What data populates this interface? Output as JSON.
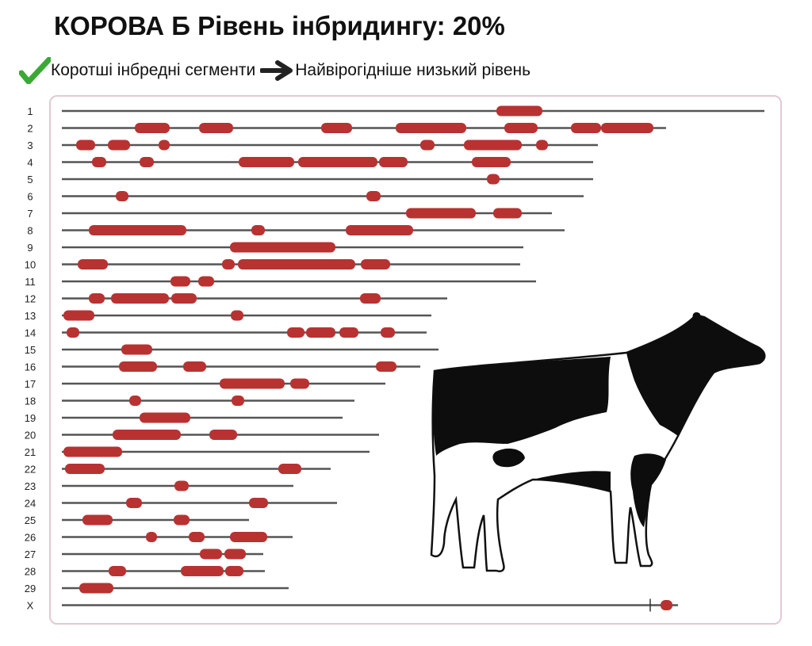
{
  "header": {
    "title": "КОРОВА Б Рівень інбридингу: 20%",
    "note_left": "Коротші інбредні сегменти",
    "note_right": "Найвірогідніше низький рівень"
  },
  "colors": {
    "segment": "#b83232",
    "chromosome": "#555555",
    "check": "#3aa935",
    "panel_border": "#e2c9d6"
  },
  "icons": [
    "check-icon",
    "arrow-right-icon",
    "cow-illustration"
  ],
  "chart_data": {
    "type": "chromosome-map",
    "chromosomes": [
      {
        "label": "1",
        "length": 886,
        "segments": [
          [
            548,
            606
          ]
        ]
      },
      {
        "label": "2",
        "length": 762,
        "segments": [
          [
            92,
            136
          ],
          [
            173,
            216
          ],
          [
            327,
            366
          ],
          [
            421,
            510
          ],
          [
            558,
            600
          ],
          [
            642,
            680
          ],
          [
            680,
            746
          ]
        ]
      },
      {
        "label": "3",
        "length": 676,
        "segments": [
          [
            18,
            42
          ],
          [
            58,
            86
          ],
          [
            122,
            136
          ],
          [
            452,
            470
          ],
          [
            507,
            580
          ],
          [
            598,
            613
          ]
        ]
      },
      {
        "label": "4",
        "length": 670,
        "segments": [
          [
            38,
            56
          ],
          [
            98,
            116
          ],
          [
            223,
            293
          ],
          [
            298,
            398
          ],
          [
            400,
            436
          ],
          [
            517,
            566
          ]
        ]
      },
      {
        "label": "5",
        "length": 670,
        "segments": [
          [
            536,
            552
          ]
        ]
      },
      {
        "label": "6",
        "length": 658,
        "segments": [
          [
            68,
            84
          ],
          [
            384,
            402
          ]
        ]
      },
      {
        "label": "7",
        "length": 618,
        "segments": [
          [
            434,
            522
          ],
          [
            544,
            580
          ]
        ]
      },
      {
        "label": "8",
        "length": 634,
        "segments": [
          [
            34,
            157
          ],
          [
            239,
            256
          ],
          [
            358,
            443
          ]
        ]
      },
      {
        "label": "9",
        "length": 582,
        "segments": [
          [
            212,
            345
          ]
        ]
      },
      {
        "label": "10",
        "length": 578,
        "segments": [
          [
            20,
            58
          ],
          [
            202,
            218
          ],
          [
            222,
            370
          ],
          [
            377,
            414
          ]
        ]
      },
      {
        "label": "11",
        "length": 598,
        "segments": [
          [
            137,
            162
          ],
          [
            172,
            192
          ]
        ]
      },
      {
        "label": "12",
        "length": 486,
        "segments": [
          [
            34,
            54
          ],
          [
            62,
            135
          ],
          [
            138,
            170
          ],
          [
            376,
            402
          ]
        ]
      },
      {
        "label": "13",
        "length": 466,
        "segments": [
          [
            2,
            41
          ],
          [
            213,
            229
          ]
        ]
      },
      {
        "label": "14",
        "length": 460,
        "segments": [
          [
            6,
            22
          ],
          [
            284,
            306
          ],
          [
            308,
            345
          ],
          [
            350,
            374
          ],
          [
            402,
            420
          ]
        ]
      },
      {
        "label": "15",
        "length": 475,
        "segments": [
          [
            75,
            114
          ]
        ]
      },
      {
        "label": "16",
        "length": 452,
        "segments": [
          [
            72,
            120
          ],
          [
            153,
            182
          ],
          [
            396,
            422
          ]
        ]
      },
      {
        "label": "17",
        "length": 408,
        "segments": [
          [
            199,
            281
          ],
          [
            288,
            312
          ]
        ]
      },
      {
        "label": "18",
        "length": 369,
        "segments": [
          [
            85,
            100
          ],
          [
            214,
            230
          ]
        ]
      },
      {
        "label": "19",
        "length": 354,
        "segments": [
          [
            98,
            162
          ]
        ]
      },
      {
        "label": "20",
        "length": 400,
        "segments": [
          [
            64,
            150
          ],
          [
            186,
            221
          ]
        ]
      },
      {
        "label": "21",
        "length": 388,
        "segments": [
          [
            2,
            76
          ]
        ]
      },
      {
        "label": "22",
        "length": 339,
        "segments": [
          [
            4,
            54
          ],
          [
            273,
            302
          ]
        ]
      },
      {
        "label": "23",
        "length": 292,
        "segments": [
          [
            142,
            160
          ]
        ]
      },
      {
        "label": "24",
        "length": 347,
        "segments": [
          [
            81,
            101
          ],
          [
            236,
            260
          ]
        ]
      },
      {
        "label": "25",
        "length": 236,
        "segments": [
          [
            26,
            64
          ],
          [
            141,
            161
          ]
        ]
      },
      {
        "label": "26",
        "length": 291,
        "segments": [
          [
            106,
            120
          ],
          [
            160,
            180
          ],
          [
            212,
            259
          ]
        ]
      },
      {
        "label": "27",
        "length": 254,
        "segments": [
          [
            174,
            202
          ],
          [
            205,
            232
          ]
        ]
      },
      {
        "label": "28",
        "length": 256,
        "segments": [
          [
            59,
            81
          ],
          [
            150,
            204
          ],
          [
            206,
            229
          ]
        ]
      },
      {
        "label": "29",
        "length": 286,
        "segments": [
          [
            22,
            65
          ]
        ]
      },
      {
        "label": "X",
        "length": 777,
        "segments": [
          [
            755,
            770
          ]
        ],
        "marker": 742
      }
    ]
  }
}
